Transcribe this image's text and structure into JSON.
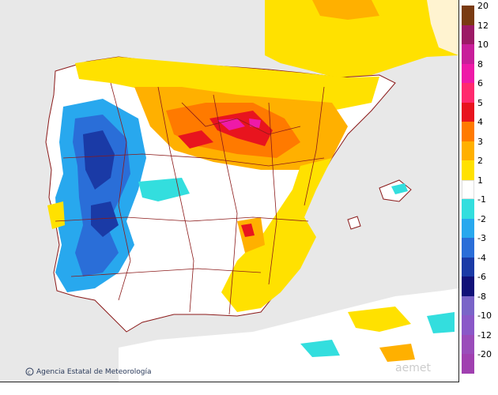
{
  "map": {
    "credit_text": "Agencia Estatal de Meteorología",
    "watermark_text": "aemet",
    "sea_color": "#e8e8e8",
    "land_color": "#ffffff",
    "border_color": "#8b1a1a"
  },
  "legend": {
    "ticks": [
      "20",
      "12",
      "10",
      "8",
      "6",
      "5",
      "4",
      "3",
      "2",
      "1",
      "-1",
      "-2",
      "-3",
      "-4",
      "-6",
      "-8",
      "-10",
      "-12",
      "-20"
    ],
    "bins": [
      {
        "color": "#7a3b12"
      },
      {
        "color": "#9c1a66"
      },
      {
        "color": "#c81e9a"
      },
      {
        "color": "#ee1aa8"
      },
      {
        "color": "#ff2a6e"
      },
      {
        "color": "#e8141e"
      },
      {
        "color": "#ff7a00"
      },
      {
        "color": "#ffb000"
      },
      {
        "color": "#ffe100"
      },
      {
        "color": "#ffffff"
      },
      {
        "color": "#33dede"
      },
      {
        "color": "#28a8ee"
      },
      {
        "color": "#2a6ed8"
      },
      {
        "color": "#1a3aa6"
      },
      {
        "color": "#101078"
      },
      {
        "color": "#7a64c8"
      },
      {
        "color": "#8a58c8"
      },
      {
        "color": "#9a4cba"
      },
      {
        "color": "#a040b0"
      }
    ]
  }
}
